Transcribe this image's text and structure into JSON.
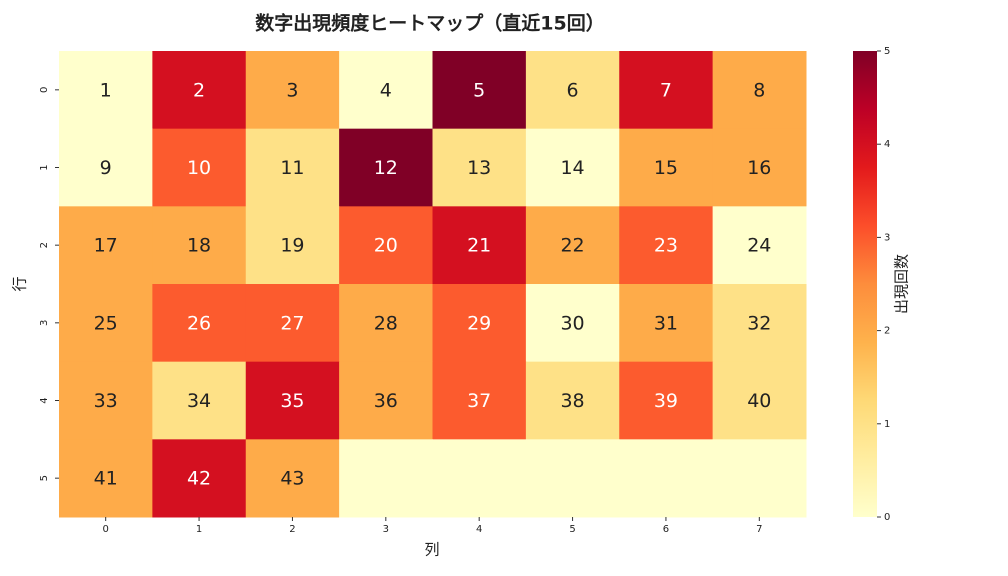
{
  "chart_data": {
    "type": "heatmap",
    "title": "数字出現頻度ヒートマップ（直近15回）",
    "x_label": "列",
    "y_label": "行",
    "colorbar_label": "出現回数",
    "x_categories": [
      0,
      1,
      2,
      3,
      4,
      5,
      6,
      7
    ],
    "y_categories": [
      0,
      1,
      2,
      3,
      4,
      5
    ],
    "values": [
      [
        0,
        4,
        2,
        0,
        5,
        1,
        4,
        2
      ],
      [
        0,
        3,
        1,
        5,
        1,
        0,
        2,
        2
      ],
      [
        2,
        2,
        1,
        3,
        4,
        2,
        3,
        0
      ],
      [
        2,
        3,
        3,
        2,
        3,
        0,
        2,
        1
      ],
      [
        2,
        1,
        4,
        2,
        3,
        1,
        3,
        1
      ],
      [
        2,
        4,
        2,
        0,
        0,
        0,
        0,
        0
      ]
    ],
    "labels": [
      [
        1,
        2,
        3,
        4,
        5,
        6,
        7,
        8
      ],
      [
        9,
        10,
        11,
        12,
        13,
        14,
        15,
        16
      ],
      [
        17,
        18,
        19,
        20,
        21,
        22,
        23,
        24
      ],
      [
        25,
        26,
        27,
        28,
        29,
        30,
        31,
        32
      ],
      [
        33,
        34,
        35,
        36,
        37,
        38,
        39,
        40
      ],
      [
        41,
        42,
        43,
        null,
        null,
        null,
        null,
        null
      ]
    ],
    "colorbar_lim": [
      0,
      5
    ],
    "colorbar_ticks": [
      0,
      1,
      2,
      3,
      4,
      5
    ],
    "colors": [
      "#ffffcc",
      "#ffeda0",
      "#fed976",
      "#feb24c",
      "#fd8d3c",
      "#fc4e2a",
      "#e31a1c",
      "#bd0026",
      "#800026"
    ]
  }
}
